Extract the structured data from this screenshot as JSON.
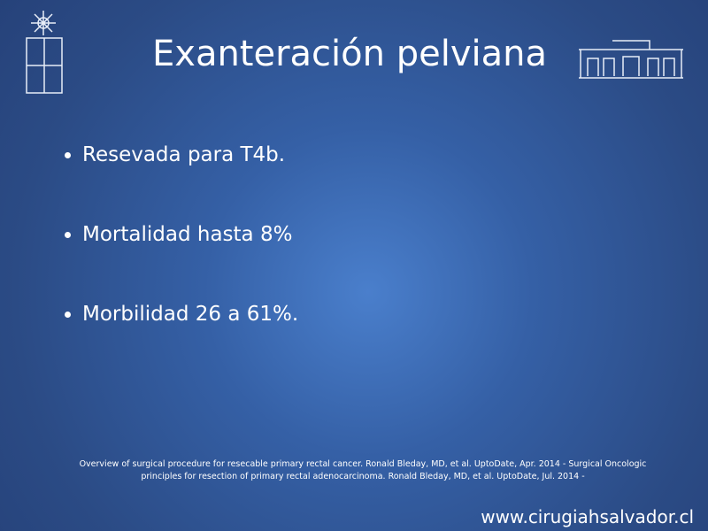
{
  "title": "Exanteración pelviana",
  "bullets": [
    "Resevada para T4b.",
    "Mortalidad hasta 8%",
    "Morbilidad 26 a 61%."
  ],
  "reference": "Overview of surgical procedure for resecable primary rectal cancer. Ronald Bleday, MD, et al. UptoDate, Apr. 2014 - Surgical Oncologic principles for resection of primary rectal adenocarcinoma. Ronald Bleday, MD, et al. UptoDate, Jul. 2014 -",
  "footer": "www.cirugiahsalvador.cl"
}
